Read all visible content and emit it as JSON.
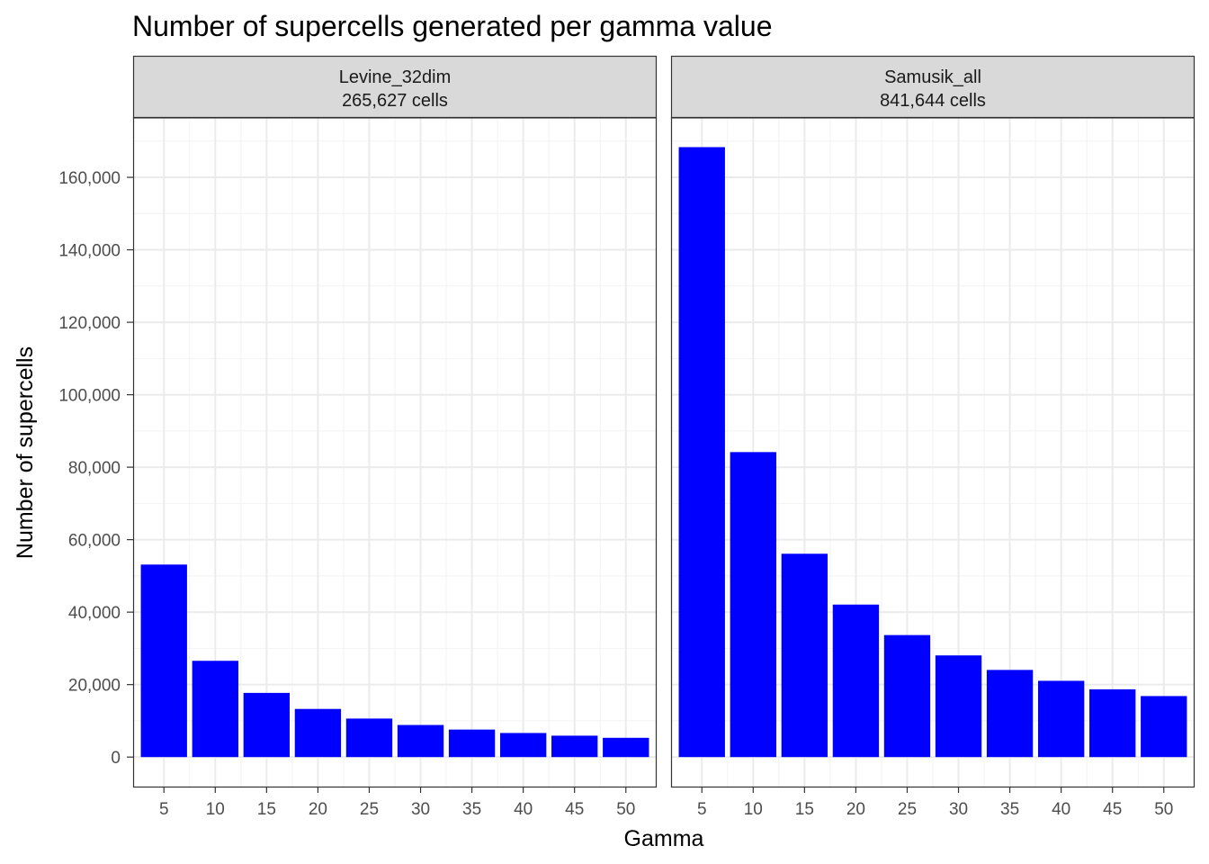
{
  "chart_data": {
    "type": "bar",
    "title": "Number of supercells generated per gamma value",
    "xlabel": "Gamma",
    "ylabel": "Number of supercells",
    "ylim": [
      -8400,
      176400
    ],
    "y_ticks": [
      0,
      20000,
      40000,
      60000,
      80000,
      100000,
      120000,
      140000,
      160000
    ],
    "y_tick_labels": [
      "0",
      "20,000",
      "40,000",
      "60,000",
      "80,000",
      "100,000",
      "120,000",
      "140,000",
      "160,000"
    ],
    "categories": [
      "5",
      "10",
      "15",
      "20",
      "25",
      "30",
      "35",
      "40",
      "45",
      "50"
    ],
    "bar_color": "#0000FF",
    "grid": true,
    "panels": [
      {
        "name": "Levine_32dim",
        "subtitle": "265,627 cells",
        "values": [
          53125,
          26563,
          17708,
          13281,
          10625,
          8854,
          7589,
          6641,
          5903,
          5313
        ]
      },
      {
        "name": "Samusik_all",
        "subtitle": "841,644 cells",
        "values": [
          168329,
          84164,
          56110,
          42082,
          33666,
          28055,
          24047,
          21041,
          18703,
          16833
        ]
      }
    ]
  }
}
